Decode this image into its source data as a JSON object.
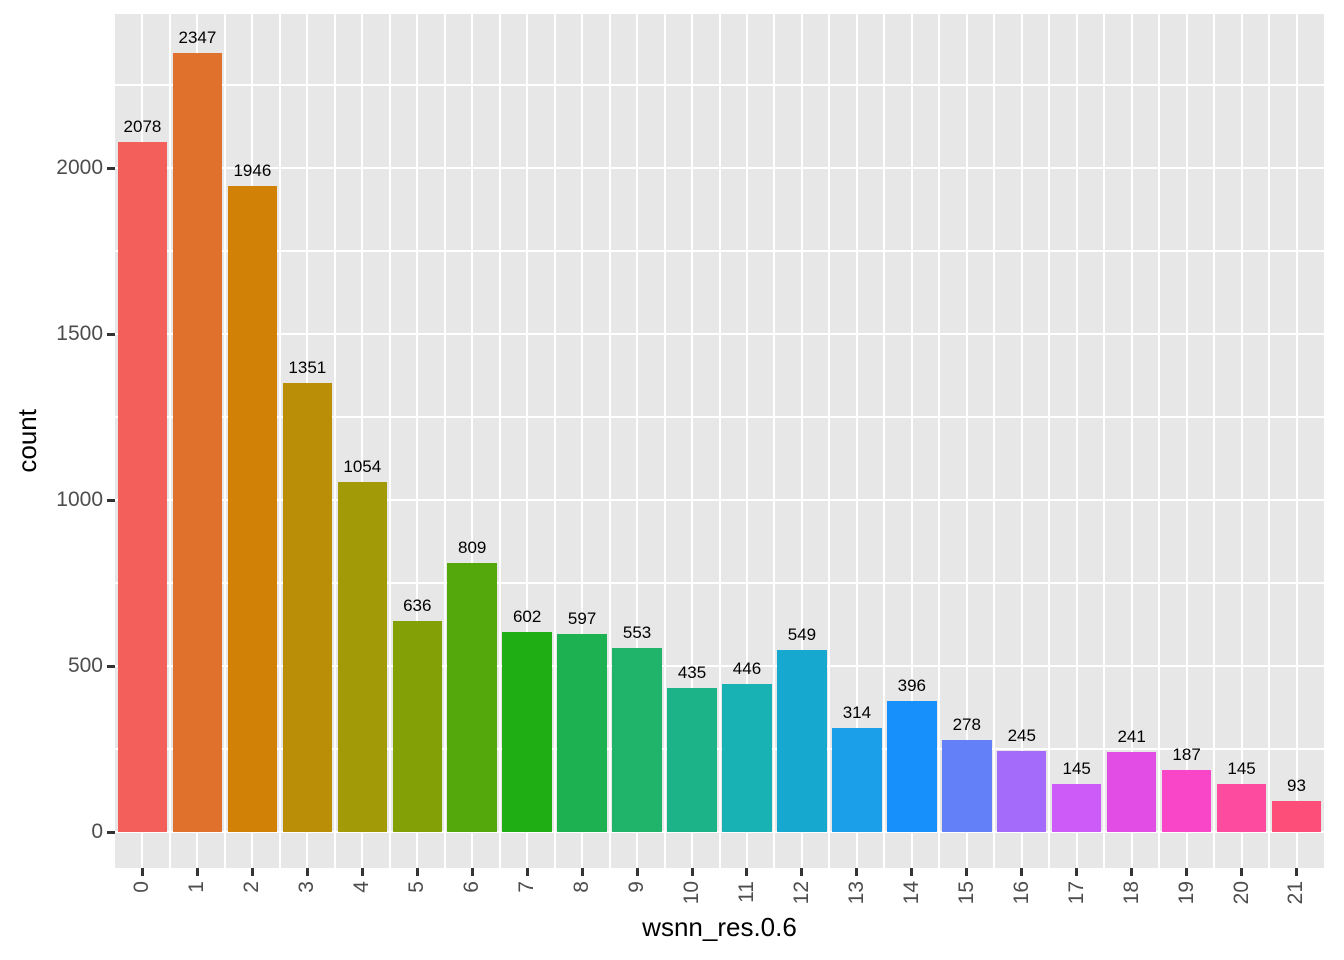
{
  "chart_data": {
    "type": "bar",
    "title": "",
    "xlabel": "wsnn_res.0.6",
    "ylabel": "count",
    "categories": [
      "0",
      "1",
      "2",
      "3",
      "4",
      "5",
      "6",
      "7",
      "8",
      "9",
      "10",
      "11",
      "12",
      "13",
      "14",
      "15",
      "16",
      "17",
      "18",
      "19",
      "20",
      "21"
    ],
    "values": [
      2078,
      2347,
      1946,
      1351,
      1054,
      636,
      809,
      602,
      597,
      553,
      435,
      446,
      549,
      314,
      396,
      278,
      245,
      145,
      241,
      187,
      145,
      93
    ],
    "bar_labels": [
      "2078",
      "2347",
      "1946",
      "1351",
      "1054",
      "636",
      "809",
      "602",
      "597",
      "553",
      "435",
      "446",
      "549",
      "314",
      "396",
      "278",
      "245",
      "145",
      "241",
      "187",
      "145",
      "93"
    ],
    "bar_colors": [
      "#F3605B",
      "#E0712C",
      "#D08106",
      "#BB8E07",
      "#A39A07",
      "#84A007",
      "#55A80B",
      "#20AE15",
      "#1EB152",
      "#20B46B",
      "#1DB389",
      "#19B2B4",
      "#17A8D0",
      "#1B9FE9",
      "#1890FB",
      "#6480F9",
      "#A46AF9",
      "#CC5BF7",
      "#E24DE5",
      "#F945C7",
      "#FD4BA0",
      "#FC4E79"
    ],
    "y_axis": {
      "tick_labels": [
        "0",
        "500",
        "1000",
        "1500",
        "2000"
      ],
      "tick_values": [
        0,
        500,
        1000,
        1500,
        2000
      ],
      "gridline_values": [
        0,
        250,
        500,
        750,
        1000,
        1250,
        1500,
        1750,
        2000,
        2250
      ],
      "range": [
        -117,
        2478
      ]
    },
    "legend": "none",
    "grid": "white on gray panel",
    "style": {
      "panel_bg": "#E7E7E7",
      "grid_color": "#FFFFFF",
      "tick_label_color": "#4D4D4D",
      "axis_title_color": "#000000",
      "bar_label_color": "#000000",
      "tick_mark_color": "#333333"
    }
  }
}
